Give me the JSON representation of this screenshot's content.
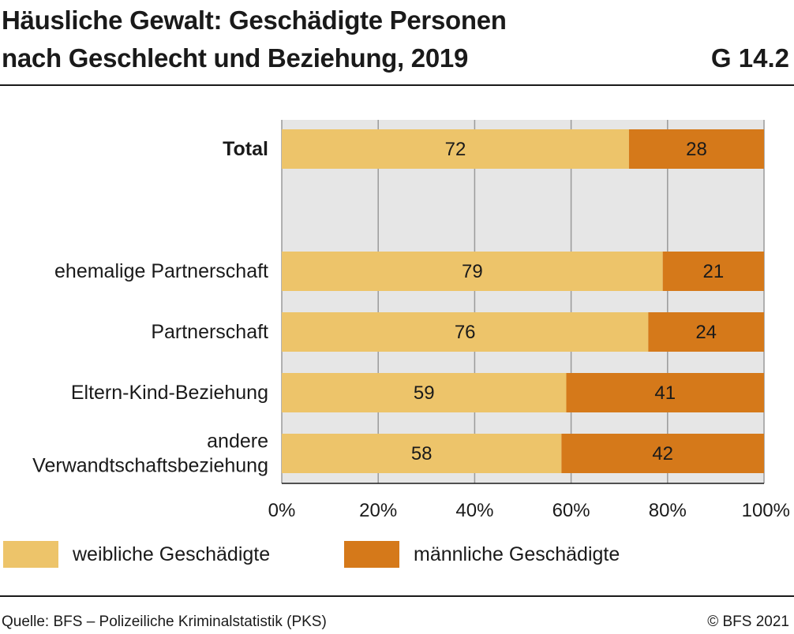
{
  "header": {
    "title_line1": "Häusliche Gewalt: Geschädigte Personen",
    "title_line2": "nach Geschlecht und Beziehung, 2019",
    "code": "G 14.2"
  },
  "chart_data": {
    "type": "bar",
    "orientation": "horizontal",
    "stacked": true,
    "categories": [
      "Total",
      "ehemalige Partnerschaft",
      "Partnerschaft",
      "Eltern-Kind-Beziehung",
      "andere Verwandtschaftsbeziehung"
    ],
    "category_label_lines": [
      [
        "Total"
      ],
      [
        "ehemalige Partnerschaft"
      ],
      [
        "Partnerschaft"
      ],
      [
        "Eltern-Kind-Beziehung"
      ],
      [
        "andere",
        "Verwandtschaftsbeziehung"
      ]
    ],
    "bold_categories": [
      "Total"
    ],
    "series": [
      {
        "name": "weibliche Geschädigte",
        "values": [
          72,
          79,
          76,
          59,
          58
        ],
        "color": "#edc46a"
      },
      {
        "name": "männliche Geschädigte",
        "values": [
          28,
          21,
          24,
          41,
          42
        ],
        "color": "#d5791a"
      }
    ],
    "xlim": [
      0,
      100
    ],
    "xticks": [
      "0%",
      "20%",
      "40%",
      "60%",
      "80%",
      "100%"
    ],
    "grid": true,
    "legend_position": "bottom"
  },
  "legend": {
    "female_label": "weibliche Geschädigte",
    "male_label": "männliche Geschädigte"
  },
  "footer": {
    "source": "Quelle: BFS – Polizeiliche Kriminalstatistik (PKS)",
    "copyright": "© BFS 2021"
  }
}
